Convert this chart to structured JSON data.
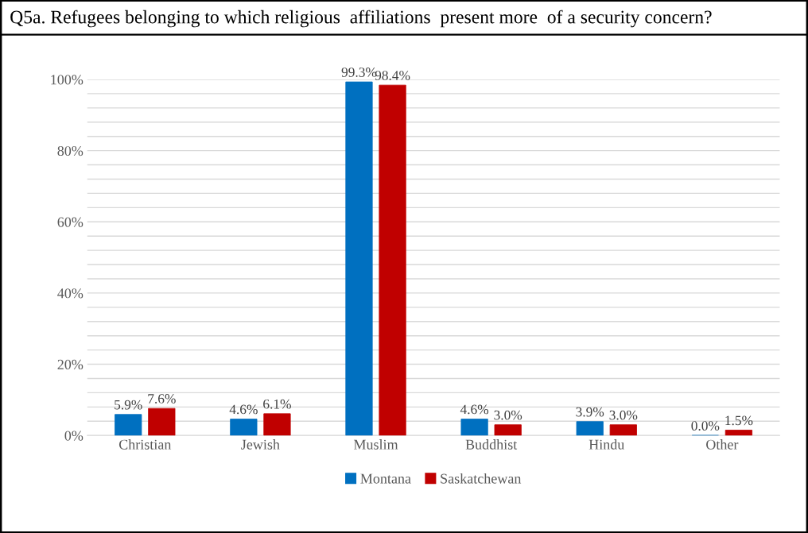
{
  "chart_data": {
    "type": "bar",
    "title": "Q5a. Refugees belonging to which religious  affiliations  present more  of a security concern?",
    "categories": [
      "Christian",
      "Jewish",
      "Muslim",
      "Buddhist",
      "Hindu",
      "Other"
    ],
    "series": [
      {
        "name": "Montana",
        "color": "#0070c0",
        "values": [
          5.9,
          4.6,
          99.3,
          4.6,
          3.9,
          0.0
        ],
        "value_labels": [
          "5.9%",
          "4.6%",
          "99.3%",
          "4.6%",
          "3.9%",
          "0.0%"
        ]
      },
      {
        "name": "Saskatchewan",
        "color": "#c00000",
        "values": [
          7.6,
          6.1,
          98.4,
          3.0,
          3.0,
          1.5
        ],
        "value_labels": [
          "7.6%",
          "6.1%",
          "98.4%",
          "3.0%",
          "3.0%",
          "1.5%"
        ]
      }
    ],
    "ylim": [
      0,
      100
    ],
    "yticks": [
      {
        "value": 0,
        "label": "0%"
      },
      {
        "value": 4,
        "label": null
      },
      {
        "value": 8,
        "label": null
      },
      {
        "value": 12,
        "label": null
      },
      {
        "value": 16,
        "label": null
      },
      {
        "value": 20,
        "label": "20%"
      },
      {
        "value": 24,
        "label": null
      },
      {
        "value": 28,
        "label": null
      },
      {
        "value": 32,
        "label": null
      },
      {
        "value": 36,
        "label": null
      },
      {
        "value": 40,
        "label": "40%"
      },
      {
        "value": 44,
        "label": null
      },
      {
        "value": 48,
        "label": null
      },
      {
        "value": 52,
        "label": null
      },
      {
        "value": 56,
        "label": null
      },
      {
        "value": 60,
        "label": "60%"
      },
      {
        "value": 64,
        "label": null
      },
      {
        "value": 68,
        "label": null
      },
      {
        "value": 72,
        "label": null
      },
      {
        "value": 76,
        "label": null
      },
      {
        "value": 80,
        "label": "80%"
      },
      {
        "value": 84,
        "label": null
      },
      {
        "value": 88,
        "label": null
      },
      {
        "value": 92,
        "label": null
      },
      {
        "value": 96,
        "label": null
      },
      {
        "value": 100,
        "label": "100%"
      }
    ],
    "grid": "y",
    "legend": "bottom"
  }
}
